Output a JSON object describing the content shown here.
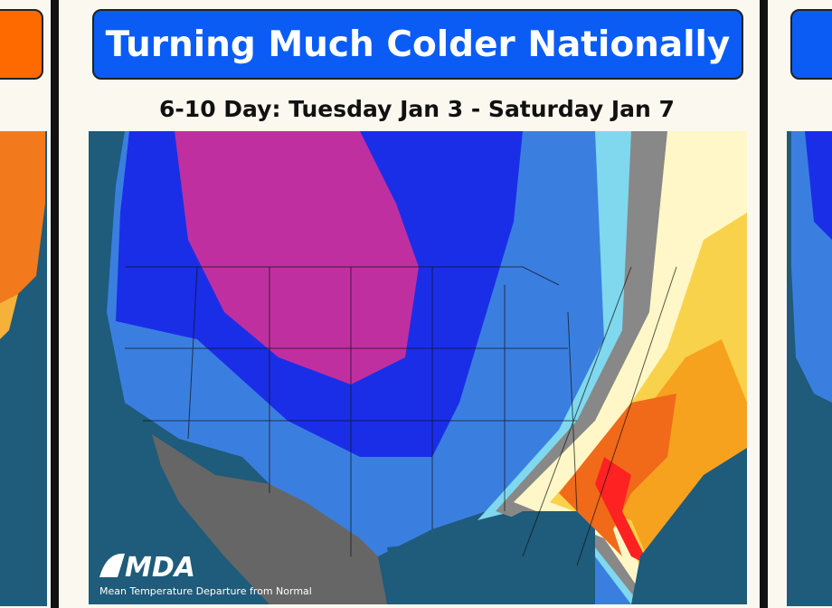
{
  "header": {
    "title": "Turning Much Colder Nationally",
    "subtitle": "6-10 Day: Tuesday Jan 3 - Saturday Jan 7"
  },
  "map": {
    "logo": "MDA",
    "caption": "Mean Temperature Departure from Normal"
  }
}
